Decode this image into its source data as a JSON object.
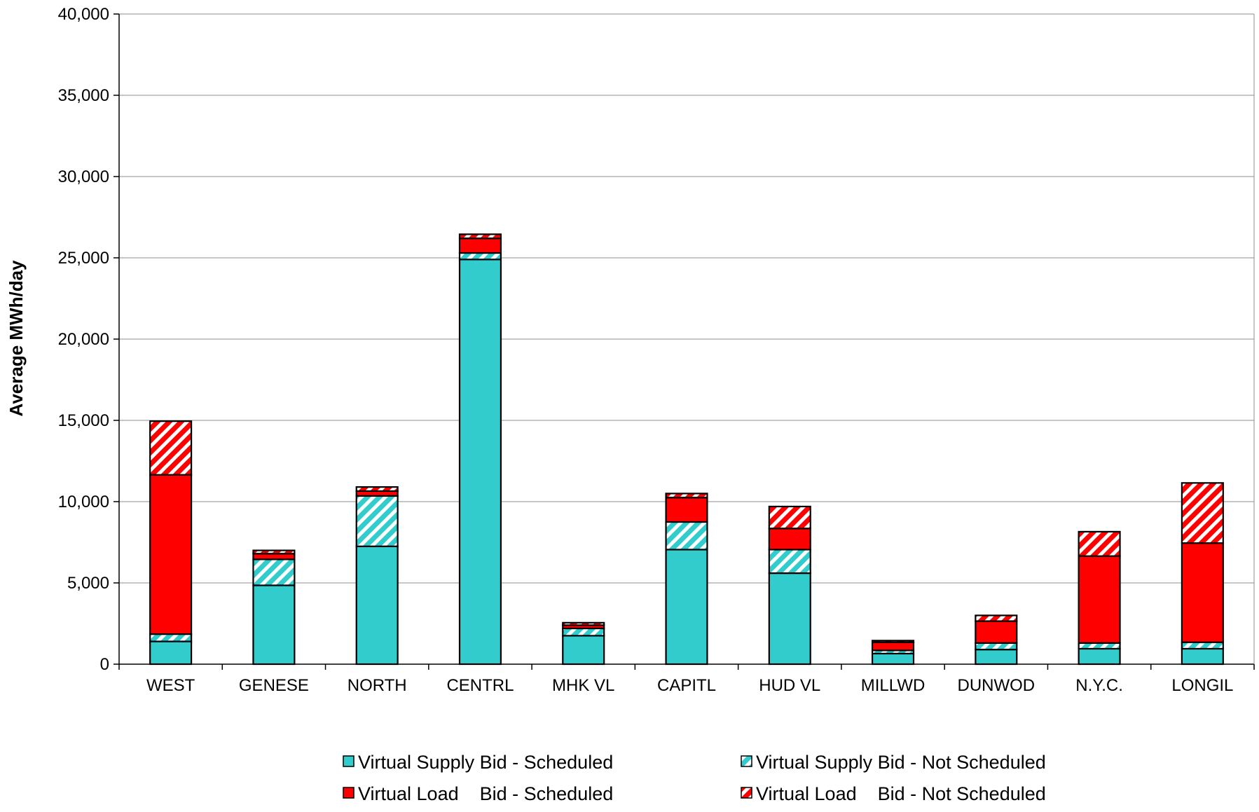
{
  "chart_data": {
    "type": "bar",
    "stacked": true,
    "title": "",
    "xlabel": "",
    "ylabel": "Average MWh/day",
    "ylim": [
      0,
      40000
    ],
    "yticks": [
      0,
      5000,
      10000,
      15000,
      20000,
      25000,
      30000,
      35000,
      40000
    ],
    "ytick_labels": [
      "0",
      "5,000",
      "10,000",
      "15,000",
      "20,000",
      "25,000",
      "30,000",
      "35,000",
      "40,000"
    ],
    "grid": true,
    "legend_position": "bottom",
    "categories": [
      "WEST",
      "GENESE",
      "NORTH",
      "CENTRL",
      "MHK VL",
      "CAPITL",
      "HUD VL",
      "MILLWD",
      "DUNWOD",
      "N.Y.C.",
      "LONGIL"
    ],
    "series": [
      {
        "name": "Virtual Supply Bid - Scheduled",
        "color": "#33CCCC",
        "pattern": "solid",
        "values": [
          1400,
          4850,
          7250,
          24900,
          1750,
          7050,
          5600,
          650,
          900,
          950,
          950
        ]
      },
      {
        "name": "Virtual Supply Bid - Not Scheduled",
        "color": "#33CCCC",
        "pattern": "hatched",
        "values": [
          450,
          1600,
          3100,
          400,
          450,
          1700,
          1450,
          200,
          400,
          350,
          400
        ]
      },
      {
        "name": "Virtual Load    Bid - Scheduled",
        "color": "#FF0000",
        "pattern": "solid",
        "values": [
          9800,
          350,
          300,
          900,
          200,
          1500,
          1300,
          500,
          1350,
          5350,
          6100
        ]
      },
      {
        "name": "Virtual Load    Bid - Not Scheduled",
        "color": "#FF0000",
        "pattern": "hatched",
        "values": [
          3300,
          200,
          250,
          250,
          150,
          250,
          1350,
          100,
          350,
          1500,
          3700
        ]
      }
    ]
  }
}
